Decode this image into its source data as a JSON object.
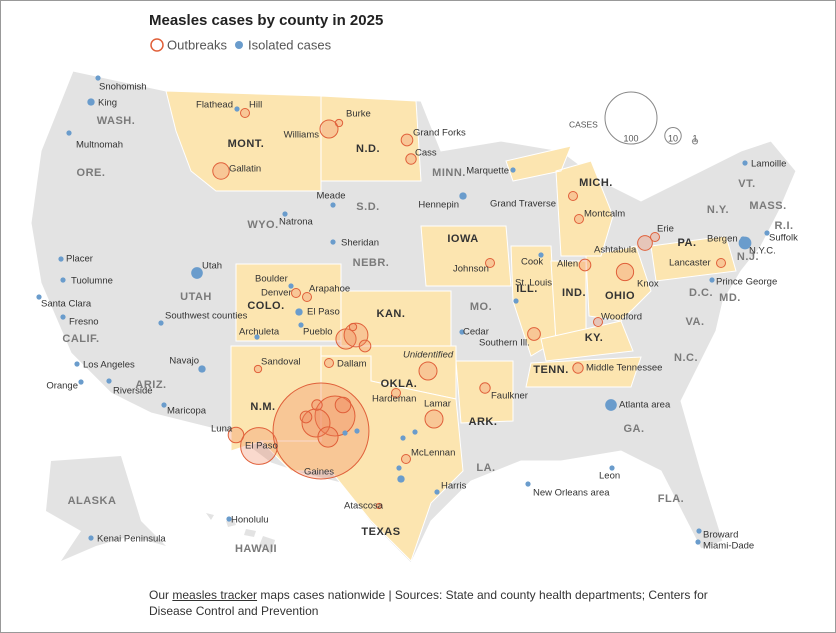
{
  "title": "Measles cases by county in 2025",
  "legend": {
    "outbreak": "Outbreaks",
    "isolated": "Isolated cases",
    "colors": {
      "outbreak": "#e0603a",
      "isolated": "#6a9ccc"
    }
  },
  "size_legend": {
    "label": "CASES",
    "values": [
      100,
      10,
      1
    ]
  },
  "states": [
    {
      "name": "WASH.",
      "outbreak": false
    },
    {
      "name": "ORE.",
      "outbreak": false
    },
    {
      "name": "CALIF.",
      "outbreak": false
    },
    {
      "name": "MONT.",
      "outbreak": true
    },
    {
      "name": "WYO.",
      "outbreak": false
    },
    {
      "name": "UTAH",
      "outbreak": false
    },
    {
      "name": "COLO.",
      "outbreak": true
    },
    {
      "name": "ARIZ.",
      "outbreak": false
    },
    {
      "name": "N.M.",
      "outbreak": true
    },
    {
      "name": "N.D.",
      "outbreak": true
    },
    {
      "name": "S.D.",
      "outbreak": false
    },
    {
      "name": "NEBR.",
      "outbreak": false
    },
    {
      "name": "KAN.",
      "outbreak": true
    },
    {
      "name": "OKLA.",
      "outbreak": true
    },
    {
      "name": "TEXAS",
      "outbreak": true
    },
    {
      "name": "MINN.",
      "outbreak": false
    },
    {
      "name": "IOWA",
      "outbreak": true
    },
    {
      "name": "MO.",
      "outbreak": false
    },
    {
      "name": "ARK.",
      "outbreak": true
    },
    {
      "name": "LA.",
      "outbreak": false
    },
    {
      "name": "ILL.",
      "outbreak": true
    },
    {
      "name": "IND.",
      "outbreak": true
    },
    {
      "name": "OHIO",
      "outbreak": true
    },
    {
      "name": "KY.",
      "outbreak": true
    },
    {
      "name": "TENN.",
      "outbreak": true
    },
    {
      "name": "MICH.",
      "outbreak": true
    },
    {
      "name": "PA.",
      "outbreak": true
    },
    {
      "name": "N.Y.",
      "outbreak": false
    },
    {
      "name": "VT.",
      "outbreak": false
    },
    {
      "name": "MASS.",
      "outbreak": false
    },
    {
      "name": "R.I.",
      "outbreak": false
    },
    {
      "name": "N.J.",
      "outbreak": false
    },
    {
      "name": "MD.",
      "outbreak": false
    },
    {
      "name": "D.C.",
      "outbreak": false
    },
    {
      "name": "VA.",
      "outbreak": false
    },
    {
      "name": "N.C.",
      "outbreak": false
    },
    {
      "name": "GA.",
      "outbreak": false
    },
    {
      "name": "FLA.",
      "outbreak": false
    },
    {
      "name": "ALASKA",
      "outbreak": false
    },
    {
      "name": "HAWAII",
      "outbreak": false
    }
  ],
  "places": [
    {
      "name": "Snohomish",
      "kind": "isolated",
      "cases": 1
    },
    {
      "name": "King",
      "kind": "isolated",
      "cases": 2
    },
    {
      "name": "Multnomah",
      "kind": "isolated",
      "cases": 1
    },
    {
      "name": "Flathead",
      "kind": "isolated",
      "cases": 1
    },
    {
      "name": "Hill",
      "kind": "outbreak",
      "cases": 3
    },
    {
      "name": "Burke",
      "kind": "outbreak",
      "cases": 2
    },
    {
      "name": "Williams",
      "kind": "outbreak",
      "cases": 12
    },
    {
      "name": "Grand Forks",
      "kind": "outbreak",
      "cases": 5
    },
    {
      "name": "Cass",
      "kind": "outbreak",
      "cases": 4
    },
    {
      "name": "Gallatin",
      "kind": "outbreak",
      "cases": 10
    },
    {
      "name": "Meade",
      "kind": "isolated",
      "cases": 1
    },
    {
      "name": "Natrona",
      "kind": "isolated",
      "cases": 1
    },
    {
      "name": "Sheridan",
      "kind": "isolated",
      "cases": 1
    },
    {
      "name": "Hennepin",
      "kind": "isolated",
      "cases": 2
    },
    {
      "name": "Marquette",
      "kind": "isolated",
      "cases": 1
    },
    {
      "name": "Grand Traverse",
      "kind": "outbreak",
      "cases": 3
    },
    {
      "name": "Montcalm",
      "kind": "outbreak",
      "cases": 3
    },
    {
      "name": "Placer",
      "kind": "isolated",
      "cases": 1
    },
    {
      "name": "Tuolumne",
      "kind": "isolated",
      "cases": 1
    },
    {
      "name": "Santa Clara",
      "kind": "isolated",
      "cases": 1
    },
    {
      "name": "Fresno",
      "kind": "isolated",
      "cases": 1
    },
    {
      "name": "Los Angeles",
      "kind": "isolated",
      "cases": 1
    },
    {
      "name": "Orange",
      "kind": "isolated",
      "cases": 1
    },
    {
      "name": "Riverside",
      "kind": "isolated",
      "cases": 1
    },
    {
      "name": "Utah",
      "kind": "isolated",
      "cases": 5
    },
    {
      "name": "Southwest counties",
      "kind": "isolated",
      "cases": 1
    },
    {
      "name": "Boulder",
      "kind": "isolated",
      "cases": 1
    },
    {
      "name": "Denver",
      "kind": "outbreak",
      "cases": 3
    },
    {
      "name": "Arapahoe",
      "kind": "outbreak",
      "cases": 3
    },
    {
      "name": "El Paso",
      "kind": "isolated",
      "cases": 2
    },
    {
      "name": "Archuleta",
      "kind": "isolated",
      "cases": 1
    },
    {
      "name": "Pueblo",
      "kind": "isolated",
      "cases": 1
    },
    {
      "name": "Sandoval",
      "kind": "outbreak",
      "cases": 2
    },
    {
      "name": "Navajo",
      "kind": "isolated",
      "cases": 2
    },
    {
      "name": "Maricopa",
      "kind": "isolated",
      "cases": 1
    },
    {
      "name": "Dallam",
      "kind": "outbreak",
      "cases": 3
    },
    {
      "name": "Unidentified",
      "kind": "outbreak",
      "cases": 12
    },
    {
      "name": "Hardeman",
      "kind": "outbreak",
      "cases": 3
    },
    {
      "name": "Lamar",
      "kind": "outbreak",
      "cases": 12
    },
    {
      "name": "Luna",
      "kind": "outbreak",
      "cases": 9
    },
    {
      "name": "El Paso",
      "kind": "outbreak",
      "cases": 50
    },
    {
      "name": "Gaines",
      "kind": "outbreak",
      "cases": 340
    },
    {
      "name": "McLennan",
      "kind": "outbreak",
      "cases": 3
    },
    {
      "name": "Atascosa",
      "kind": "outbreak",
      "cases": 1
    },
    {
      "name": "Harris",
      "kind": "isolated",
      "cases": 1
    },
    {
      "name": "Faulkner",
      "kind": "outbreak",
      "cases": 4
    },
    {
      "name": "Johnson",
      "kind": "outbreak",
      "cases": 3
    },
    {
      "name": "Cook",
      "kind": "isolated",
      "cases": 1
    },
    {
      "name": "St. Louis",
      "kind": "isolated",
      "cases": 1
    },
    {
      "name": "Cedar",
      "kind": "isolated",
      "cases": 1
    },
    {
      "name": "Southern Ill.",
      "kind": "outbreak",
      "cases": 6
    },
    {
      "name": "Allen",
      "kind": "outbreak",
      "cases": 5
    },
    {
      "name": "Woodford",
      "kind": "outbreak",
      "cases": 3
    },
    {
      "name": "Knox",
      "kind": "outbreak",
      "cases": 11
    },
    {
      "name": "Ashtabula",
      "kind": "outbreak",
      "cases": 8
    },
    {
      "name": "Erie",
      "kind": "outbreak",
      "cases": 3
    },
    {
      "name": "Middle Tennessee",
      "kind": "outbreak",
      "cases": 4
    },
    {
      "name": "New Orleans area",
      "kind": "isolated",
      "cases": 1
    },
    {
      "name": "Leon",
      "kind": "isolated",
      "cases": 1
    },
    {
      "name": "Atlanta area",
      "kind": "isolated",
      "cases": 5
    },
    {
      "name": "Broward",
      "kind": "isolated",
      "cases": 1
    },
    {
      "name": "Miami-Dade",
      "kind": "isolated",
      "cases": 1
    },
    {
      "name": "Lancaster",
      "kind": "outbreak",
      "cases": 3
    },
    {
      "name": "Prince George",
      "kind": "isolated",
      "cases": 1
    },
    {
      "name": "Bergen",
      "kind": "isolated",
      "cases": 1
    },
    {
      "name": "N.Y.C.",
      "kind": "isolated",
      "cases": 6
    },
    {
      "name": "Suffolk",
      "kind": "isolated",
      "cases": 1
    },
    {
      "name": "Lamoille",
      "kind": "isolated",
      "cases": 1
    },
    {
      "name": "Honolulu",
      "kind": "isolated",
      "cases": 1
    },
    {
      "name": "Kenai Peninsula",
      "kind": "isolated",
      "cases": 1
    },
    {
      "name": null,
      "kind": "outbreak",
      "cases": 15
    },
    {
      "name": null,
      "kind": "outbreak",
      "cases": 21
    },
    {
      "name": null,
      "kind": "outbreak",
      "cases": 5
    },
    {
      "name": null,
      "kind": "outbreak",
      "cases": 2
    },
    {
      "name": null,
      "kind": "outbreak",
      "cases": 59
    },
    {
      "name": null,
      "kind": "outbreak",
      "cases": 29
    },
    {
      "name": null,
      "kind": "outbreak",
      "cases": 15
    },
    {
      "name": null,
      "kind": "outbreak",
      "cases": 9
    },
    {
      "name": null,
      "kind": "outbreak",
      "cases": 5
    },
    {
      "name": null,
      "kind": "outbreak",
      "cases": 4
    },
    {
      "name": null,
      "kind": "isolated",
      "cases": 1
    },
    {
      "name": null,
      "kind": "isolated",
      "cases": 1
    },
    {
      "name": null,
      "kind": "isolated",
      "cases": 1
    },
    {
      "name": null,
      "kind": "isolated",
      "cases": 1
    },
    {
      "name": null,
      "kind": "isolated",
      "cases": 2
    },
    {
      "name": null,
      "kind": "isolated",
      "cases": 1
    }
  ],
  "footer": {
    "before": "Our",
    "link": "measles tracker",
    "after": "maps cases nationwide | Sources: State and county health departments; Centers for Disease Control and Prevention"
  }
}
